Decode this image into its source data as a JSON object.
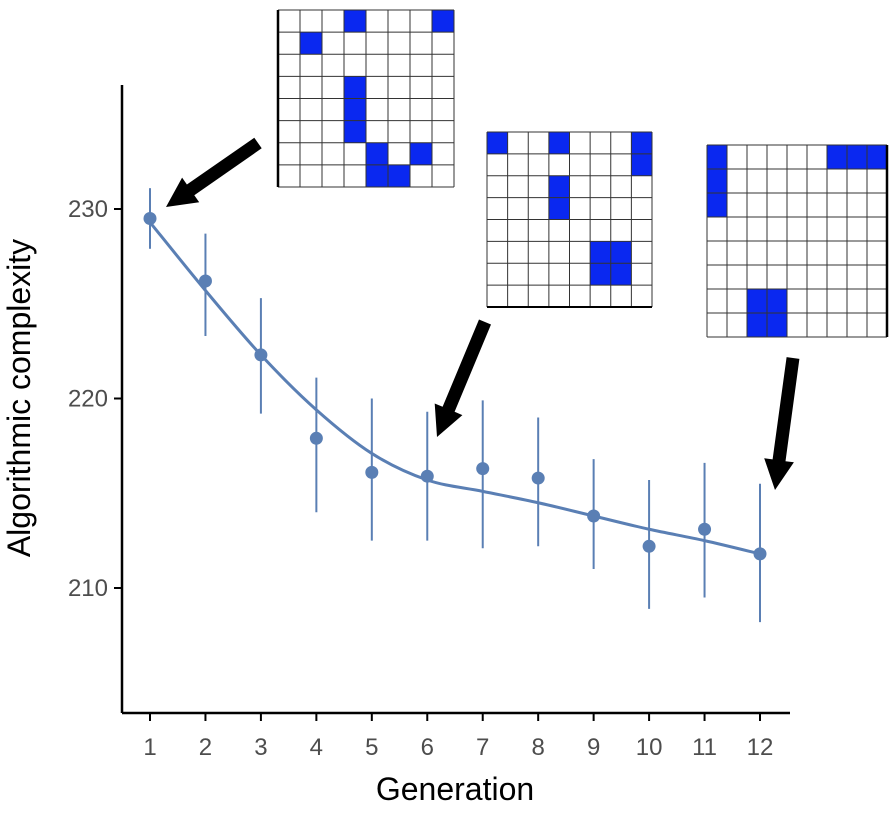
{
  "chart_data": {
    "type": "scatter",
    "xlabel": "Generation",
    "ylabel": "Algorithmic complexity",
    "xlim": [
      0.5,
      12.6
    ],
    "ylim": [
      204.5,
      236.5
    ],
    "x_ticks": [
      1,
      2,
      3,
      4,
      5,
      6,
      7,
      8,
      9,
      10,
      11,
      12
    ],
    "y_ticks": [
      210,
      220,
      230
    ],
    "grid": false,
    "legend": "none",
    "series": [
      {
        "x": [
          1,
          2,
          3,
          4,
          5,
          6,
          7,
          8,
          9,
          10,
          11,
          12
        ],
        "mean": [
          229.5,
          226.2,
          222.3,
          217.9,
          216.1,
          215.9,
          216.3,
          215.8,
          213.8,
          212.2,
          213.1,
          211.8
        ],
        "lower": [
          227.9,
          223.3,
          219.2,
          214.0,
          212.5,
          212.5,
          212.1,
          212.2,
          211.0,
          208.9,
          209.5,
          208.2
        ],
        "upper": [
          231.1,
          228.7,
          225.3,
          221.1,
          220.0,
          219.3,
          219.9,
          219.0,
          216.8,
          215.7,
          216.6,
          215.5
        ]
      }
    ],
    "smooth_line": {
      "x": [
        1,
        2,
        3,
        4,
        5,
        6,
        7,
        8,
        9,
        10,
        11,
        12
      ],
      "y": [
        229.3,
        225.7,
        222.3,
        219.4,
        217.1,
        215.7,
        215.1,
        214.5,
        213.8,
        213.1,
        212.5,
        211.8
      ]
    },
    "insets": [
      {
        "generation": 1,
        "cells": [
          "...#...#",
          ".#......",
          "........",
          "...#....",
          "...#....",
          "...#....",
          "....#.#.",
          "....##.."
        ]
      },
      {
        "generation": 6,
        "cells": [
          "#..#...#",
          ".......#",
          "...#....",
          "...#....",
          "........",
          ".....##.",
          ".....##.",
          "........"
        ]
      },
      {
        "generation": 12,
        "cells": [
          "#.....###",
          "#........",
          "#........",
          ".........",
          ".........",
          ".........",
          "..##.....",
          "..##....."
        ]
      }
    ],
    "colors": {
      "series": "#5a7fb4",
      "cell_fill": "#0a28f0",
      "grid_line": "#333333",
      "arrow": "#000000",
      "axis": "#000000"
    }
  }
}
